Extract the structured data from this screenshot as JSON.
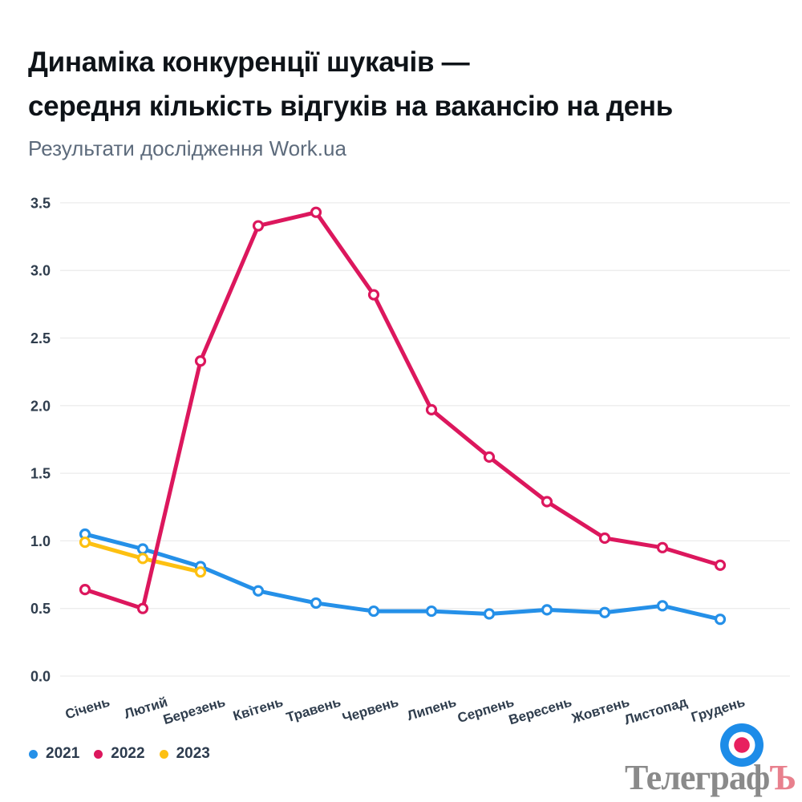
{
  "title": {
    "line1": "Динаміка конкуренції шукачів —",
    "line2": "середня кількість відгуків на вакансію на день"
  },
  "subtitle": "Результати дослідження Work.ua",
  "legend": {
    "items": [
      {
        "label": "2021",
        "color": "#2590e8"
      },
      {
        "label": "2022",
        "color": "#dc175d"
      },
      {
        "label": "2023",
        "color": "#fdc011"
      }
    ]
  },
  "logo": {
    "text_main": "Телеграф",
    "text_accent": "Ъ",
    "icon": "target-icon",
    "icon_colors": {
      "outer": "#1d8ce8",
      "ring": "#ffffff",
      "center": "#e8205f"
    }
  },
  "chart_data": {
    "type": "line",
    "categories": [
      "Січень",
      "Лютий",
      "Березень",
      "Квітень",
      "Травень",
      "Червень",
      "Липень",
      "Серпень",
      "Вересень",
      "Жовтень",
      "Листопад",
      "Грудень"
    ],
    "series": [
      {
        "name": "2021",
        "color": "#2590e8",
        "values": [
          1.05,
          0.94,
          0.81,
          0.63,
          0.54,
          0.48,
          0.48,
          0.46,
          0.49,
          0.47,
          0.52,
          0.42
        ]
      },
      {
        "name": "2022",
        "color": "#dc175d",
        "values": [
          0.64,
          0.5,
          2.33,
          3.33,
          3.43,
          2.82,
          1.97,
          1.62,
          1.29,
          1.02,
          0.95,
          0.82
        ]
      },
      {
        "name": "2023",
        "color": "#fdc011",
        "values": [
          0.99,
          0.87,
          0.77,
          null,
          null,
          null,
          null,
          null,
          null,
          null,
          null,
          null
        ]
      }
    ],
    "title": "Динаміка конкуренції шукачів — середня кількість відгуків на вакансію на день",
    "xlabel": "",
    "ylabel": "",
    "ylim": [
      0,
      3.5
    ],
    "yticks": [
      0.0,
      0.5,
      1.0,
      1.5,
      2.0,
      2.5,
      3.0,
      3.5
    ],
    "ytick_labels": [
      "0.0",
      "0.5",
      "1.0",
      "1.5",
      "2.0",
      "2.5",
      "3.0",
      "3.5"
    ],
    "grid": true,
    "grid_color": "#ececec",
    "axis_label_color": "#2f3d4d",
    "legend_position": "bottom-left",
    "draw_order": [
      "2021",
      "2023",
      "2022"
    ],
    "marker": "open-circle"
  }
}
